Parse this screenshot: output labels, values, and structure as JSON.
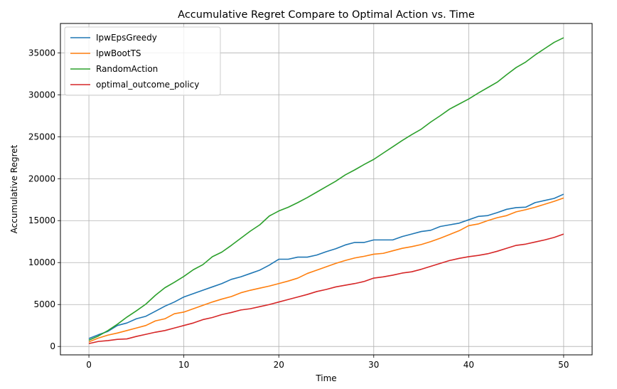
{
  "chart_data": {
    "type": "line",
    "title": "Accumulative Regret Compare to Optimal Action vs. Time",
    "xlabel": "Time",
    "ylabel": "Accumulative Regret",
    "xlim": [
      -3,
      53
    ],
    "ylim": [
      -1000,
      38500
    ],
    "xticks": [
      0,
      10,
      20,
      30,
      40,
      50
    ],
    "yticks": [
      0,
      5000,
      10000,
      15000,
      20000,
      25000,
      30000,
      35000
    ],
    "grid": true,
    "legend_position": "top-left",
    "x": [
      0,
      1,
      2,
      3,
      4,
      5,
      6,
      7,
      8,
      9,
      10,
      11,
      12,
      13,
      14,
      15,
      16,
      17,
      18,
      19,
      20,
      21,
      22,
      23,
      24,
      25,
      26,
      27,
      28,
      29,
      30,
      31,
      32,
      33,
      34,
      35,
      36,
      37,
      38,
      39,
      40,
      41,
      42,
      43,
      44,
      45,
      46,
      47,
      48,
      49,
      50
    ],
    "series": [
      {
        "name": "IpwEpsGreedy",
        "color": "#1f77b4",
        "values": [
          950,
          1400,
          1800,
          2500,
          2800,
          3300,
          3600,
          4200,
          4800,
          5300,
          5900,
          6300,
          6700,
          7100,
          7500,
          8000,
          8300,
          8700,
          9100,
          9700,
          10400,
          10400,
          10650,
          10650,
          10900,
          11300,
          11650,
          12100,
          12400,
          12400,
          12700,
          12700,
          12700,
          13100,
          13400,
          13700,
          13850,
          14300,
          14500,
          14700,
          15100,
          15500,
          15600,
          15950,
          16350,
          16550,
          16600,
          17150,
          17400,
          17650,
          18150
        ]
      },
      {
        "name": "IpwBootTS",
        "color": "#ff7f0e",
        "values": [
          550,
          1000,
          1350,
          1600,
          1900,
          2200,
          2500,
          3050,
          3300,
          3900,
          4100,
          4500,
          4900,
          5300,
          5650,
          5950,
          6400,
          6700,
          6950,
          7200,
          7500,
          7800,
          8150,
          8700,
          9100,
          9500,
          9900,
          10250,
          10550,
          10750,
          11000,
          11100,
          11400,
          11700,
          11900,
          12150,
          12500,
          12900,
          13350,
          13800,
          14400,
          14600,
          15000,
          15350,
          15600,
          16050,
          16300,
          16600,
          16950,
          17300,
          17700
        ]
      },
      {
        "name": "RandomAction",
        "color": "#2ca02c",
        "values": [
          750,
          1250,
          1900,
          2650,
          3500,
          4250,
          5050,
          6100,
          7000,
          7650,
          8350,
          9150,
          9750,
          10700,
          11250,
          12050,
          12900,
          13750,
          14500,
          15550,
          16150,
          16600,
          17150,
          17750,
          18400,
          19050,
          19700,
          20450,
          21050,
          21700,
          22300,
          23050,
          23800,
          24550,
          25250,
          25900,
          26750,
          27500,
          28300,
          28900,
          29500,
          30200,
          30850,
          31500,
          32400,
          33250,
          33900,
          34750,
          35500,
          36250,
          36800
        ]
      },
      {
        "name": "optimal_outcome_policy",
        "color": "#d62728",
        "values": [
          350,
          600,
          700,
          850,
          900,
          1200,
          1450,
          1700,
          1900,
          2200,
          2500,
          2800,
          3200,
          3450,
          3800,
          4050,
          4350,
          4500,
          4750,
          5000,
          5300,
          5600,
          5900,
          6200,
          6550,
          6800,
          7100,
          7300,
          7500,
          7750,
          8150,
          8300,
          8500,
          8750,
          8900,
          9200,
          9550,
          9900,
          10250,
          10500,
          10700,
          10850,
          11050,
          11350,
          11700,
          12050,
          12200,
          12450,
          12700,
          13000,
          13400
        ]
      }
    ]
  }
}
